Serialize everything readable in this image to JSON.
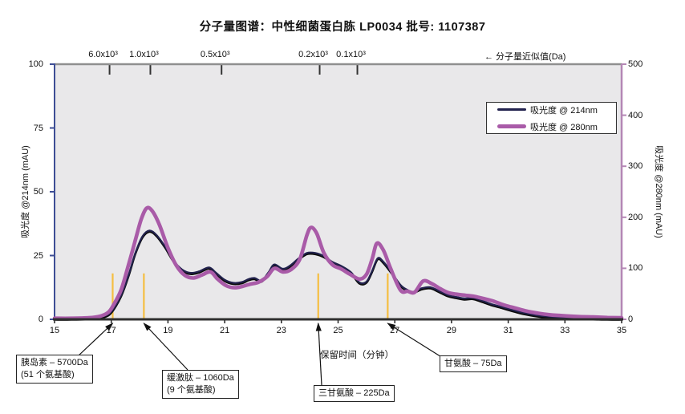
{
  "title": "分子量图谱：中性细菌蛋白胨 LP0034  批号: 1107387",
  "mw_axis": {
    "note": "← 分子量近似值(Da)",
    "ticks": [
      {
        "label": "6.0x10³",
        "time": 16.94
      },
      {
        "label": "1.0x10³",
        "time": 18.38
      },
      {
        "label": "0.5x10³",
        "time": 20.89
      },
      {
        "label": "0.2x10³",
        "time": 24.35
      },
      {
        "label": "0.1x10³",
        "time": 25.68
      }
    ]
  },
  "legend": {
    "items": [
      {
        "label": "吸光度 @ 214nm",
        "color": "#22224E"
      },
      {
        "label": "吸光度 @ 280nm",
        "color": "#A95BA8"
      }
    ]
  },
  "annotations": [
    {
      "lines": [
        "胰岛素 – 5700Da",
        "(51 个氨基酸)"
      ],
      "time": 17.05
    },
    {
      "lines": [
        "缓激肽 – 1060Da",
        "(9 个氨基酸)"
      ],
      "time": 18.15
    },
    {
      "lines": [
        "三甘氨酸 – 225Da"
      ],
      "time": 24.3
    },
    {
      "lines": [
        "甘氨酸 – 75Da"
      ],
      "time": 26.75
    }
  ],
  "colors": {
    "series_214": "#22224E",
    "series_214_shadow": "#0b0b0b",
    "series_280": "#A95BA8",
    "marker": "#F5BE41",
    "plot_bg": "#E9E8EA",
    "left_axis": "#3E4E95",
    "right_axis": "#B487B5",
    "top_axis": "#8F8F8F",
    "bottom_axis": "#2F2F2F",
    "text": "#111111"
  },
  "chart_data": {
    "type": "line",
    "title": "分子量图谱：中性细菌蛋白胨 LP0034  批号: 1107387",
    "x_axis": {
      "label": "保留时间（分钟）",
      "min": 15,
      "max": 35,
      "tick_step": 2,
      "ticks": [
        15,
        17,
        19,
        21,
        23,
        25,
        27,
        29,
        31,
        33,
        35
      ]
    },
    "y_left": {
      "label": "吸光度 @214nm (mAU)",
      "min": 0,
      "max": 100,
      "ticks": [
        0,
        25,
        50,
        75,
        100
      ]
    },
    "y_right": {
      "label": "吸光度 @280nm (mAU)",
      "min": 0,
      "max": 500,
      "ticks": [
        0,
        100,
        200,
        300,
        400,
        500
      ]
    },
    "grid": false,
    "legend_position": "upper-right-inside",
    "markers": {
      "times": [
        17.05,
        18.15,
        24.3,
        26.75
      ],
      "height_left_units": 18
    },
    "series": [
      {
        "name": "吸光度 @ 214nm",
        "axis": "left",
        "width": 2.2,
        "points": [
          [
            15,
            0.3
          ],
          [
            15.6,
            0.3
          ],
          [
            16.2,
            0.5
          ],
          [
            16.6,
            0.9
          ],
          [
            16.9,
            2
          ],
          [
            17.1,
            4.5
          ],
          [
            17.35,
            9.5
          ],
          [
            17.6,
            17
          ],
          [
            17.85,
            26
          ],
          [
            18.1,
            32.5
          ],
          [
            18.35,
            34.8
          ],
          [
            18.6,
            33
          ],
          [
            18.9,
            28.5
          ],
          [
            19.2,
            23
          ],
          [
            19.5,
            19.5
          ],
          [
            19.8,
            18.2
          ],
          [
            20.1,
            18.8
          ],
          [
            20.45,
            20.3
          ],
          [
            20.7,
            18.2
          ],
          [
            21,
            15.5
          ],
          [
            21.3,
            14.3
          ],
          [
            21.6,
            14.6
          ],
          [
            21.85,
            15.8
          ],
          [
            22.05,
            16.2
          ],
          [
            22.3,
            15.2
          ],
          [
            22.55,
            18.5
          ],
          [
            22.75,
            21.5
          ],
          [
            23.05,
            19.8
          ],
          [
            23.3,
            21
          ],
          [
            23.6,
            23.8
          ],
          [
            23.9,
            26
          ],
          [
            24.2,
            26
          ],
          [
            24.5,
            24.8
          ],
          [
            24.8,
            22.5
          ],
          [
            25.1,
            21
          ],
          [
            25.45,
            18.5
          ],
          [
            25.75,
            14.5
          ],
          [
            26,
            14.8
          ],
          [
            26.2,
            19
          ],
          [
            26.4,
            24
          ],
          [
            26.6,
            22.5
          ],
          [
            26.85,
            19
          ],
          [
            27.2,
            13.5
          ],
          [
            27.45,
            11.5
          ],
          [
            27.65,
            10.8
          ],
          [
            27.95,
            12.2
          ],
          [
            28.25,
            12.6
          ],
          [
            28.55,
            11.2
          ],
          [
            28.85,
            9.6
          ],
          [
            29.15,
            8.8
          ],
          [
            29.45,
            8.2
          ],
          [
            29.75,
            8.4
          ],
          [
            30.05,
            7.4
          ],
          [
            30.4,
            6
          ],
          [
            30.8,
            4.8
          ],
          [
            31.2,
            3.5
          ],
          [
            31.6,
            2.4
          ],
          [
            32,
            1.6
          ],
          [
            32.4,
            1.1
          ],
          [
            32.9,
            0.8
          ],
          [
            33.4,
            0.5
          ],
          [
            34,
            0.4
          ],
          [
            34.5,
            0.3
          ],
          [
            35,
            0.3
          ]
        ]
      },
      {
        "name": "吸光度 @ 280nm",
        "axis": "right",
        "width": 4.6,
        "points": [
          [
            15,
            2
          ],
          [
            15.6,
            2
          ],
          [
            16.2,
            3
          ],
          [
            16.6,
            6
          ],
          [
            16.9,
            14
          ],
          [
            17.1,
            30
          ],
          [
            17.35,
            58
          ],
          [
            17.6,
            105
          ],
          [
            17.85,
            155
          ],
          [
            18.05,
            195
          ],
          [
            18.25,
            218
          ],
          [
            18.45,
            212
          ],
          [
            18.7,
            185
          ],
          [
            19,
            140
          ],
          [
            19.3,
            105
          ],
          [
            19.6,
            86
          ],
          [
            19.9,
            81
          ],
          [
            20.2,
            87
          ],
          [
            20.5,
            93
          ],
          [
            20.75,
            79
          ],
          [
            21.05,
            66
          ],
          [
            21.35,
            62
          ],
          [
            21.65,
            65
          ],
          [
            21.9,
            69
          ],
          [
            22.2,
            73
          ],
          [
            22.5,
            84
          ],
          [
            22.75,
            100
          ],
          [
            23.05,
            93
          ],
          [
            23.35,
            98
          ],
          [
            23.65,
            118
          ],
          [
            23.9,
            165
          ],
          [
            24.05,
            180
          ],
          [
            24.25,
            168
          ],
          [
            24.5,
            130
          ],
          [
            24.8,
            107
          ],
          [
            25.1,
            99
          ],
          [
            25.4,
            89
          ],
          [
            25.75,
            79
          ],
          [
            26,
            88
          ],
          [
            26.2,
            118
          ],
          [
            26.37,
            149
          ],
          [
            26.6,
            135
          ],
          [
            26.85,
            100
          ],
          [
            27.2,
            57
          ],
          [
            27.45,
            55
          ],
          [
            27.7,
            53
          ],
          [
            28,
            75
          ],
          [
            28.3,
            70
          ],
          [
            28.6,
            60
          ],
          [
            28.9,
            52
          ],
          [
            29.2,
            49
          ],
          [
            29.5,
            47
          ],
          [
            29.8,
            45
          ],
          [
            30.1,
            41
          ],
          [
            30.45,
            36
          ],
          [
            30.85,
            28
          ],
          [
            31.25,
            22
          ],
          [
            31.65,
            16
          ],
          [
            32.05,
            12
          ],
          [
            32.45,
            9
          ],
          [
            32.95,
            7
          ],
          [
            33.45,
            5.5
          ],
          [
            34,
            4.5
          ],
          [
            34.5,
            3.5
          ],
          [
            35,
            3
          ]
        ]
      }
    ]
  }
}
